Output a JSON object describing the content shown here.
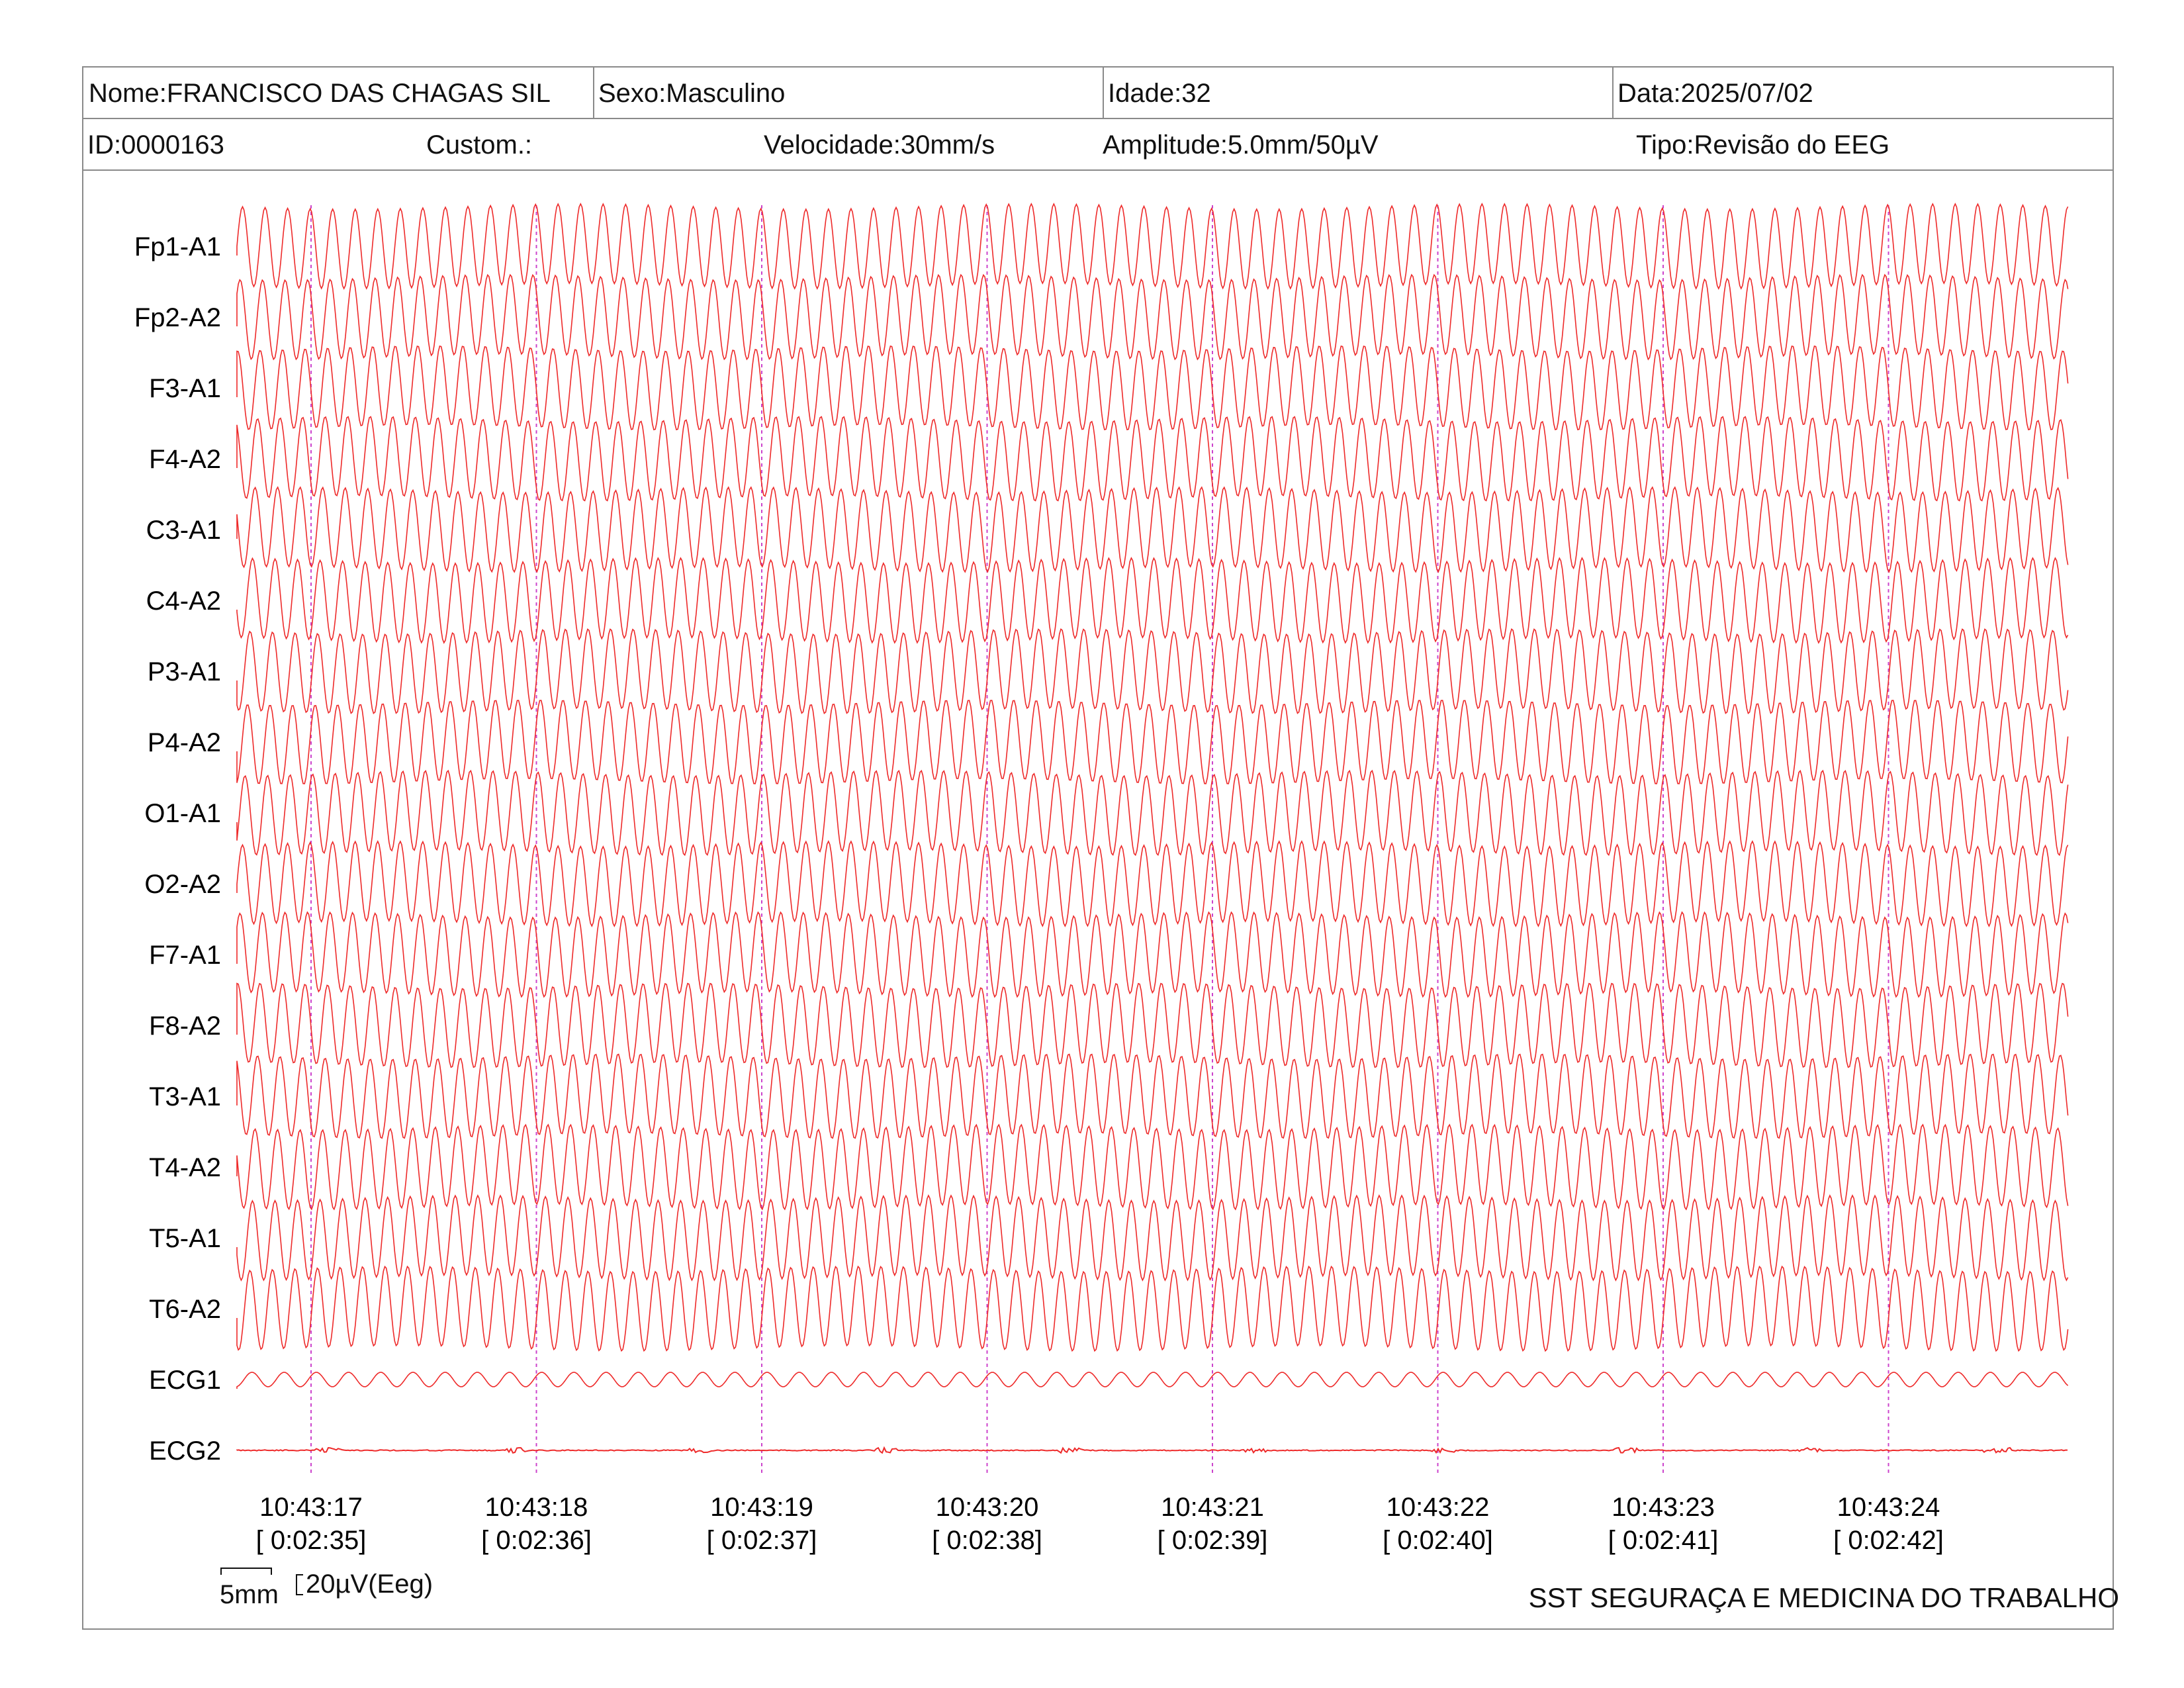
{
  "header": {
    "row1": {
      "nome": "Nome:FRANCISCO DAS CHAGAS SIL",
      "sexo": "Sexo:Masculino",
      "idade": "Idade:32",
      "data": "Data:2025/07/02"
    },
    "row2": {
      "id": "ID:0000163",
      "custom": "Custom.:",
      "velocidade": "Velocidade:30mm/s",
      "amplitude": "Amplitude:5.0mm/50µV",
      "tipo": "Tipo:Revisão do EEG"
    }
  },
  "scale": {
    "time_label": "5mm",
    "amp_label": "20µV(Eeg)"
  },
  "footer": {
    "brand": "SST SEGURAÇA E MEDICINA DO TRABALHO"
  },
  "colors": {
    "trace": "#ee2a2a",
    "marker": "#cc44cc",
    "border": "#8a8a8a"
  },
  "chart_data": {
    "type": "line",
    "channels": [
      "Fp1-A1",
      "Fp2-A2",
      "F3-A1",
      "F4-A2",
      "C3-A1",
      "C4-A2",
      "P3-A1",
      "P4-A2",
      "O1-A1",
      "O2-A2",
      "F7-A1",
      "F8-A2",
      "T3-A1",
      "T4-A2",
      "T5-A1",
      "T6-A2",
      "ECG1",
      "ECG2"
    ],
    "time_markers": [
      {
        "clock": "10:43:17",
        "elapsed": "[ 0:02:35]"
      },
      {
        "clock": "10:43:18",
        "elapsed": "[ 0:02:36]"
      },
      {
        "clock": "10:43:19",
        "elapsed": "[ 0:02:37]"
      },
      {
        "clock": "10:43:20",
        "elapsed": "[ 0:02:38]"
      },
      {
        "clock": "10:43:21",
        "elapsed": "[ 0:02:39]"
      },
      {
        "clock": "10:43:22",
        "elapsed": "[ 0:02:40]"
      },
      {
        "clock": "10:43:23",
        "elapsed": "[ 0:02:41]"
      },
      {
        "clock": "10:43:24",
        "elapsed": "[ 0:02:42]"
      }
    ],
    "eeg_frequency_hz": 10,
    "ecg1_frequency_hz": 7,
    "grid": false
  }
}
